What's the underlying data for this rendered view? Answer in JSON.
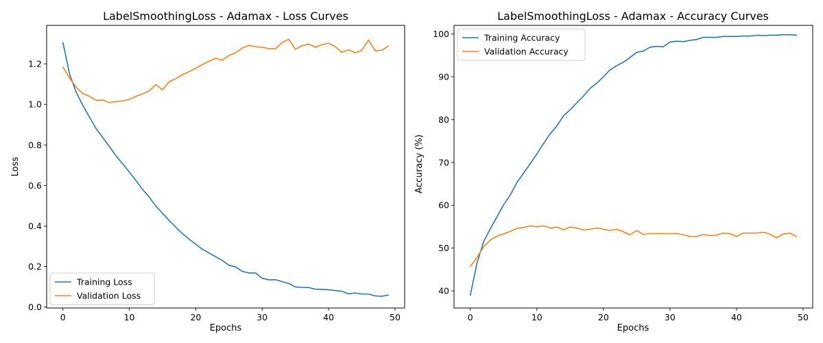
{
  "chart_data": [
    {
      "type": "line",
      "title": "LabelSmoothingLoss - Adamax - Loss Curves",
      "xlabel": "Epochs",
      "ylabel": "Loss",
      "xlim": [
        -2.45,
        51.45
      ],
      "ylim": [
        -0.005,
        1.39
      ],
      "xticks": [
        0,
        10,
        20,
        30,
        40,
        50
      ],
      "yticks": [
        0.0,
        0.2,
        0.4,
        0.6,
        0.8,
        1.0,
        1.2
      ],
      "ytick_decimals": 1,
      "grid": false,
      "legend_position": "lower-left",
      "x": [
        0,
        1,
        2,
        3,
        4,
        5,
        6,
        7,
        8,
        9,
        10,
        11,
        12,
        13,
        14,
        15,
        16,
        17,
        18,
        19,
        20,
        21,
        22,
        23,
        24,
        25,
        26,
        27,
        28,
        29,
        30,
        31,
        32,
        33,
        34,
        35,
        36,
        37,
        38,
        39,
        40,
        41,
        42,
        43,
        44,
        45,
        46,
        47,
        48,
        49
      ],
      "series": [
        {
          "name": "Training Loss",
          "color": "#1f77b4",
          "values": [
            1.305,
            1.15,
            1.06,
            0.995,
            0.937,
            0.88,
            0.836,
            0.792,
            0.746,
            0.707,
            0.666,
            0.624,
            0.58,
            0.542,
            0.498,
            0.463,
            0.427,
            0.394,
            0.362,
            0.335,
            0.31,
            0.285,
            0.267,
            0.248,
            0.23,
            0.206,
            0.198,
            0.176,
            0.168,
            0.168,
            0.142,
            0.134,
            0.135,
            0.125,
            0.116,
            0.099,
            0.097,
            0.096,
            0.088,
            0.087,
            0.085,
            0.081,
            0.078,
            0.065,
            0.069,
            0.064,
            0.064,
            0.055,
            0.053,
            0.059
          ]
        },
        {
          "name": "Validation Loss",
          "color": "#ff7f0e",
          "values": [
            1.185,
            1.13,
            1.085,
            1.053,
            1.04,
            1.02,
            1.022,
            1.008,
            1.015,
            1.017,
            1.025,
            1.04,
            1.052,
            1.067,
            1.098,
            1.072,
            1.112,
            1.127,
            1.147,
            1.162,
            1.178,
            1.197,
            1.213,
            1.228,
            1.218,
            1.242,
            1.255,
            1.278,
            1.292,
            1.285,
            1.282,
            1.275,
            1.275,
            1.305,
            1.322,
            1.272,
            1.29,
            1.298,
            1.282,
            1.295,
            1.302,
            1.285,
            1.257,
            1.27,
            1.255,
            1.267,
            1.318,
            1.265,
            1.267,
            1.288
          ]
        }
      ]
    },
    {
      "type": "line",
      "title": "LabelSmoothingLoss - Adamax - Accuracy Curves",
      "xlabel": "Epochs",
      "ylabel": "Accuracy (%)",
      "xlim": [
        -2.45,
        51.45
      ],
      "ylim": [
        36.0,
        102.0
      ],
      "xticks": [
        0,
        10,
        20,
        30,
        40,
        50
      ],
      "yticks": [
        40,
        50,
        60,
        70,
        80,
        90,
        100
      ],
      "ytick_decimals": 0,
      "grid": false,
      "legend_position": "upper-left",
      "x": [
        0,
        1,
        2,
        3,
        4,
        5,
        6,
        7,
        8,
        9,
        10,
        11,
        12,
        13,
        14,
        15,
        16,
        17,
        18,
        19,
        20,
        21,
        22,
        23,
        24,
        25,
        26,
        27,
        28,
        29,
        30,
        31,
        32,
        33,
        34,
        35,
        36,
        37,
        38,
        39,
        40,
        41,
        42,
        43,
        44,
        45,
        46,
        47,
        48,
        49
      ],
      "series": [
        {
          "name": "Training Accuracy",
          "color": "#1f77b4",
          "values": [
            39.0,
            46.5,
            51.5,
            54.5,
            57.3,
            60.1,
            62.4,
            65.3,
            67.5,
            69.7,
            72.0,
            74.4,
            76.7,
            78.5,
            80.9,
            82.3,
            83.9,
            85.5,
            87.3,
            88.5,
            90.0,
            91.6,
            92.6,
            93.4,
            94.5,
            95.7,
            96.0,
            96.9,
            97.1,
            97.0,
            98.1,
            98.3,
            98.2,
            98.5,
            98.7,
            99.2,
            99.2,
            99.2,
            99.4,
            99.4,
            99.4,
            99.5,
            99.5,
            99.7,
            99.6,
            99.7,
            99.7,
            99.8,
            99.8,
            99.7
          ]
        },
        {
          "name": "Validation Accuracy",
          "color": "#ff7f0e",
          "values": [
            45.7,
            47.8,
            50.3,
            51.9,
            52.8,
            53.3,
            53.9,
            54.6,
            54.8,
            55.2,
            55.0,
            55.2,
            54.7,
            54.9,
            54.3,
            54.9,
            54.7,
            54.2,
            54.4,
            54.7,
            54.4,
            54.1,
            54.4,
            53.8,
            53.1,
            54.1,
            53.2,
            53.4,
            53.4,
            53.4,
            53.4,
            53.4,
            53.1,
            52.7,
            52.7,
            53.2,
            52.9,
            53.0,
            53.5,
            53.4,
            52.7,
            53.5,
            53.5,
            53.5,
            53.7,
            53.3,
            52.4,
            53.3,
            53.5,
            52.7
          ]
        }
      ]
    }
  ]
}
